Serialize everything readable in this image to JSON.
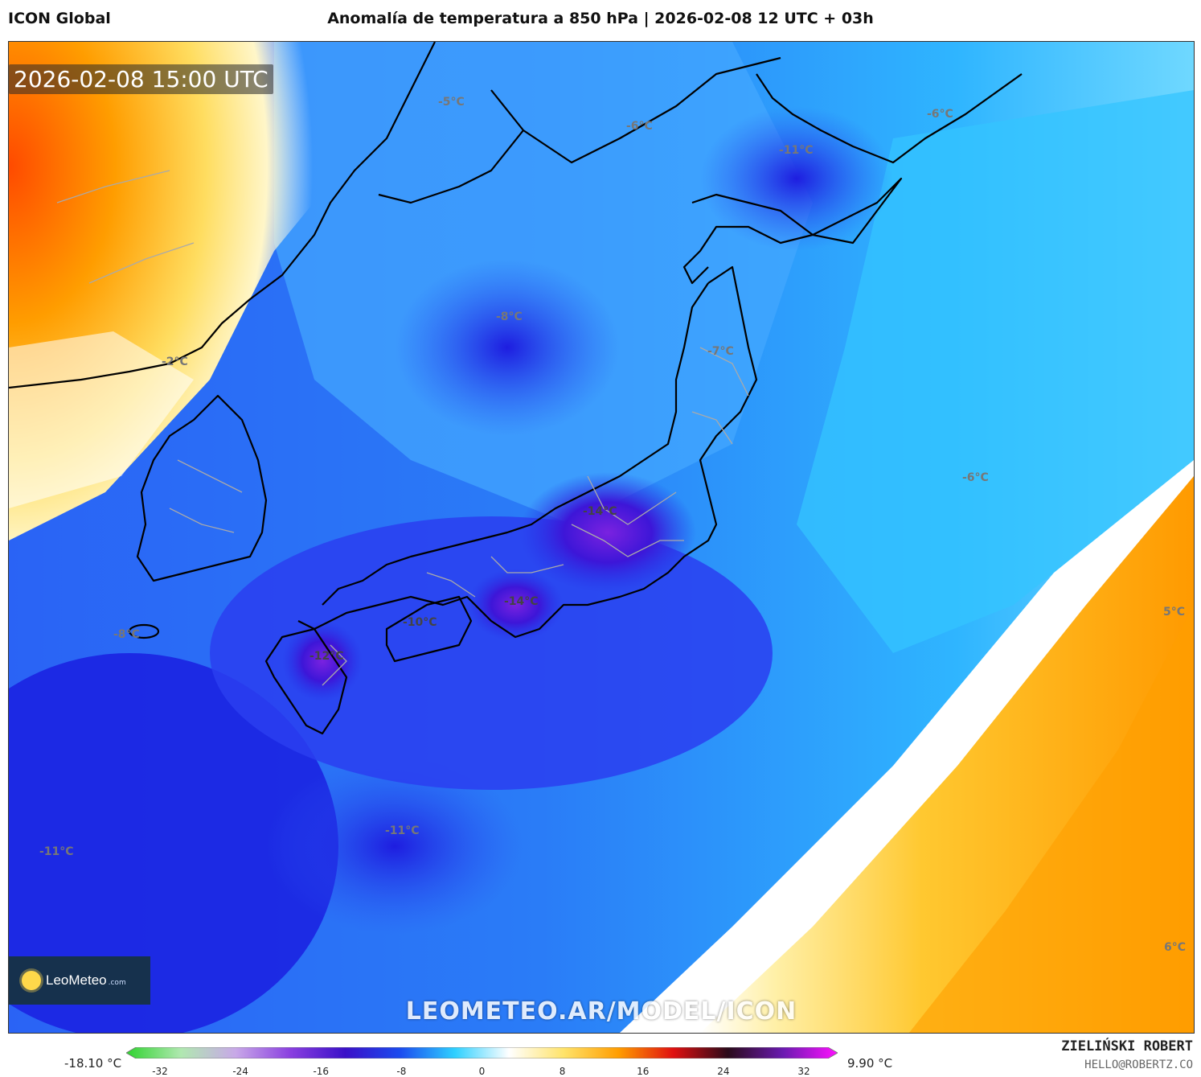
{
  "header": {
    "model": "ICON Global",
    "title": "Anomalía de temperatura a 850 hPa | 2026-02-08 12 UTC + 03h"
  },
  "map": {
    "timestamp": "2026-02-08 15:00 UTC",
    "watermark": "LEOMETEO.AR/MODEL/ICON",
    "logo": {
      "name": "LeoMeteo",
      "suffix": ".com"
    },
    "labels": [
      {
        "text": "-5°C"
      },
      {
        "text": "-6°C"
      },
      {
        "text": "-11°C"
      },
      {
        "text": "-6°C"
      },
      {
        "text": "-8°C"
      },
      {
        "text": "-7°C"
      },
      {
        "text": "-2°C"
      },
      {
        "text": "-6°C"
      },
      {
        "text": "-14°C"
      },
      {
        "text": "-14°C"
      },
      {
        "text": "-10°C"
      },
      {
        "text": "-12°C"
      },
      {
        "text": "-8°C"
      },
      {
        "text": "5°C"
      },
      {
        "text": "-11°C"
      },
      {
        "text": "-11°C"
      },
      {
        "text": "6°C"
      }
    ]
  },
  "legend": {
    "min_label": "-18.10 °C",
    "max_label": "9.90 °C",
    "ticks": [
      "-32",
      "-24",
      "-16",
      "-8",
      "0",
      "8",
      "16",
      "24",
      "32"
    ],
    "colors": [
      "#2fd32f",
      "#b0e8b0",
      "#c8a8e8",
      "#8a3fe0",
      "#3a10c8",
      "#1b4bef",
      "#2fd0ff",
      "#ffffff",
      "#ffe36a",
      "#ff9d00",
      "#e01010",
      "#2a0a1a",
      "#6a1ab0",
      "#ff10ff"
    ]
  },
  "credits": {
    "author": "ZIELIŃSKI ROBERT",
    "email": "HELLO@ROBERTZ.CO"
  }
}
